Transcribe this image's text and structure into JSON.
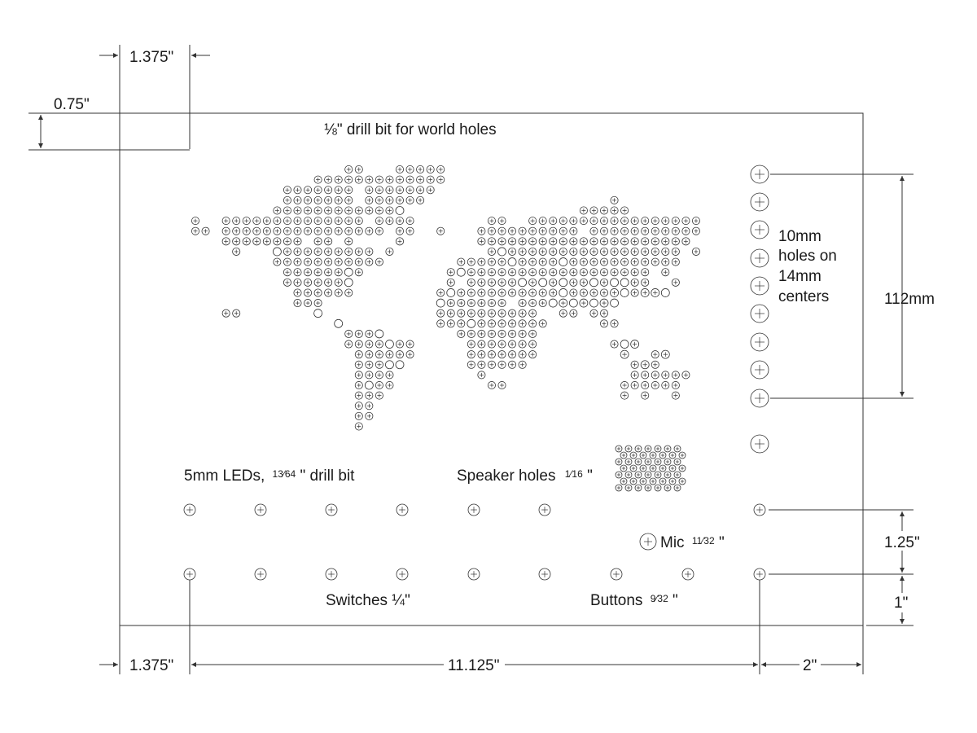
{
  "labels": {
    "world_drill": "⅛\" drill bit for world holes",
    "ten_mm_1": "10mm",
    "ten_mm_2": "holes on",
    "ten_mm_3": "14mm",
    "ten_mm_4": "centers",
    "leds": "5mm LEDs,",
    "leds_frac": "13⁄64",
    "leds_rest": "\" drill bit",
    "speaker": "Speaker holes",
    "speaker_frac": "1⁄16",
    "speaker_rest": "\"",
    "mic": "Mic",
    "mic_frac": "11⁄32",
    "mic_rest": "\"",
    "switches": "Switches ¼\"",
    "buttons": "Buttons",
    "buttons_frac": "9⁄32",
    "buttons_rest": "\""
  },
  "dimensions": {
    "top_left_width": "1.375\"",
    "top_left_height": "0.75\"",
    "right_span": "112mm",
    "right_gap_1": "1.25\"",
    "right_gap_2": "1\"",
    "bottom_left": "1.375\"",
    "bottom_mid": "11.125\"",
    "bottom_right": "2\""
  },
  "colors": {
    "blue": "#2e64a8",
    "red": "#c7372f",
    "yellow": "#f2c522",
    "line": "#333333"
  },
  "world_map_rows": [
    "...............................................",
    "................##..####.......................",
    "..............######################...........",
    "..........##########....#######................",
    "..........##########..#######.....................",
    "..............................................",
    "................................................",
    "......................."
  ]
}
